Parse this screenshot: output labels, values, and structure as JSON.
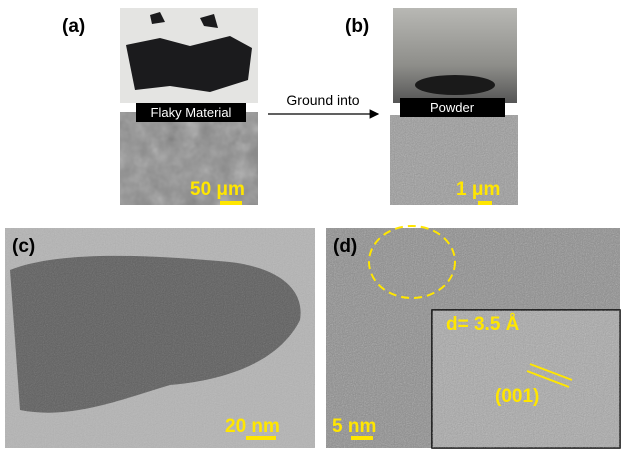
{
  "panels": {
    "a": {
      "label": "(a)",
      "caption": "Flaky Material",
      "scale_bar": "50 μm"
    },
    "b": {
      "label": "(b)",
      "caption": "Powder",
      "scale_bar": "1 μm"
    },
    "c": {
      "label": "(c)",
      "scale_bar": "20 nm"
    },
    "d": {
      "label": "(d)",
      "scale_bar": "5 nm",
      "inset": {
        "spacing": "d= 3.5 Å",
        "plane": "(001)"
      }
    }
  },
  "arrow": {
    "label": "Ground into"
  }
}
